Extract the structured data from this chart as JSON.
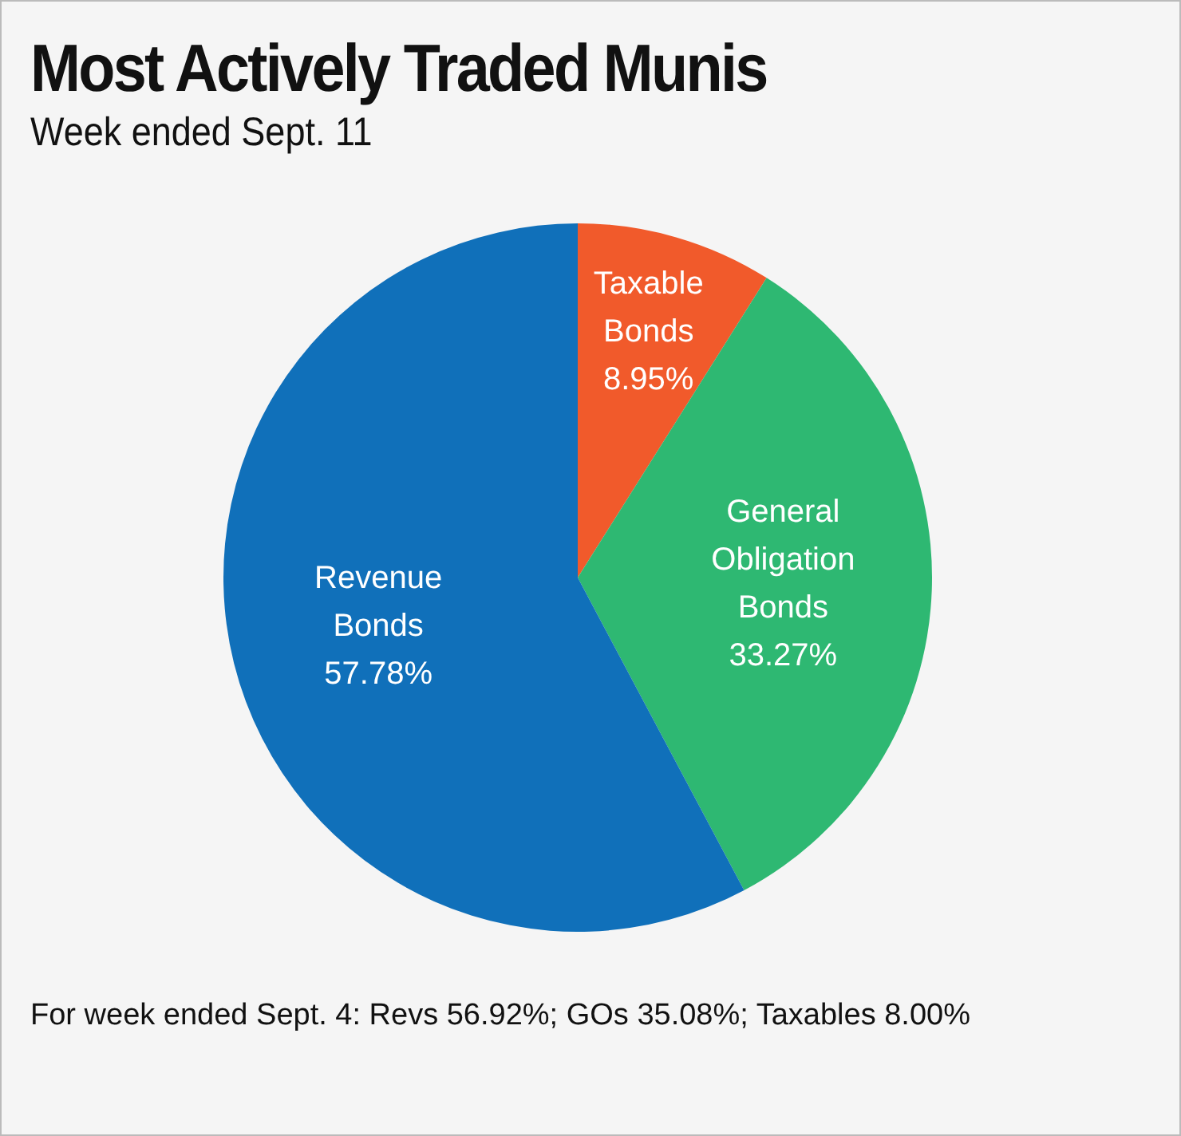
{
  "chart_data": {
    "type": "pie",
    "title": "Most Actively Traded Munis",
    "subtitle": "Week ended Sept. 11",
    "categories": [
      "Taxable Bonds",
      "General Obligation Bonds",
      "Revenue Bonds"
    ],
    "values": [
      8.95,
      33.27,
      57.78
    ],
    "value_labels": [
      "8.95%",
      "33.27%",
      "57.78%"
    ],
    "colors": [
      "#f15a2b",
      "#2eb872",
      "#1070ba"
    ],
    "legend": false,
    "annotations": [
      "For week ended Sept. 4: Revs 56.92%; GOs 35.08%; Taxables 8.00%"
    ]
  }
}
